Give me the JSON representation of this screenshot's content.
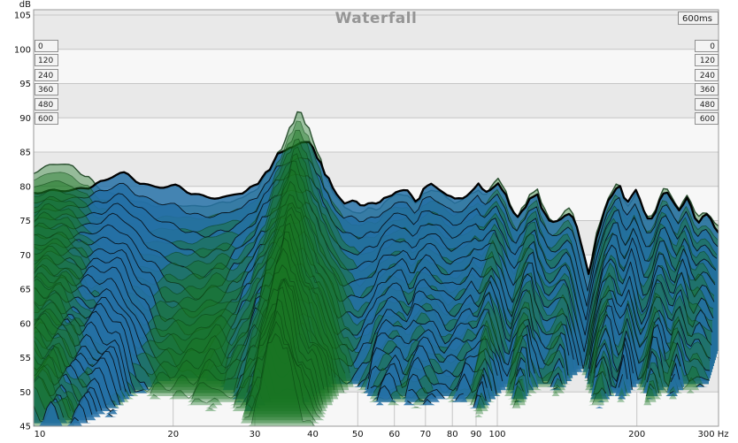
{
  "header": {
    "title": "Waterfall",
    "window_label": "600ms"
  },
  "axes": {
    "y_unit": "dB",
    "y_ticks": [
      105,
      100,
      95,
      90,
      85,
      80,
      75,
      70,
      65,
      60,
      55,
      50,
      45
    ],
    "x_ticks": [
      {
        "f": 10,
        "label": "10"
      },
      {
        "f": 20,
        "label": "20"
      },
      {
        "f": 30,
        "label": "30"
      },
      {
        "f": 40,
        "label": "40"
      },
      {
        "f": 50,
        "label": "50"
      },
      {
        "f": 60,
        "label": "60"
      },
      {
        "f": 70,
        "label": "70"
      },
      {
        "f": 80,
        "label": "80"
      },
      {
        "f": 90,
        "label": "90"
      },
      {
        "f": 100,
        "label": "100"
      },
      {
        "f": 200,
        "label": "200"
      },
      {
        "f": 300,
        "label": "300 Hz"
      }
    ],
    "time_labels_ms": [
      "0",
      "120",
      "240",
      "360",
      "480",
      "600"
    ]
  },
  "chart_data": {
    "type": "waterfall",
    "title": "Waterfall",
    "window_ms": 600,
    "x_unit": "Hz",
    "y_unit": "dB",
    "x_range": [
      10,
      300
    ],
    "y_range": [
      45,
      105
    ],
    "x_scale": "log",
    "grid": true,
    "slices": {
      "count": 26,
      "start_ms": 0,
      "end_ms": 600,
      "labeled_times_ms": [
        0,
        120,
        240,
        360,
        480,
        600
      ]
    },
    "colors": {
      "band_dark": "#e9e9e9",
      "band_light": "#f7f7f7",
      "grid": "#c6c6c6",
      "border": "#9a9a9a",
      "title_text": "#959595",
      "label_text": "#111111",
      "blue_fill": "#2470a6",
      "green_fill": "#197622"
    },
    "series": [
      {
        "name": "green",
        "fill_rgb": [
          25,
          118,
          34
        ],
        "fill_alpha": 0.4,
        "stroke": "rgba(8,58,14,0.55)",
        "stroke_first": "rgba(6,48,12,0.8)",
        "width": 0.8,
        "width_first": 1.4,
        "onset_db": [
          [
            10,
            82
          ],
          [
            11,
            83.3
          ],
          [
            12,
            83
          ],
          [
            13,
            81.5
          ],
          [
            14,
            79.6
          ],
          [
            15.5,
            78.4
          ],
          [
            17,
            77.6
          ],
          [
            18.5,
            77.2
          ],
          [
            20,
            77.4
          ],
          [
            22,
            77
          ],
          [
            24,
            77.2
          ],
          [
            26,
            77.8
          ],
          [
            28,
            78.2
          ],
          [
            30,
            79.4
          ],
          [
            32,
            81.8
          ],
          [
            34,
            85.4
          ],
          [
            36,
            88.8
          ],
          [
            37.4,
            91.2
          ],
          [
            39,
            88.8
          ],
          [
            41,
            84.8
          ],
          [
            43,
            80.8
          ],
          [
            45,
            78.4
          ],
          [
            47,
            76.8
          ],
          [
            49,
            76.4
          ],
          [
            51,
            76.2
          ],
          [
            53,
            76.8
          ],
          [
            55,
            76.6
          ],
          [
            58,
            78
          ],
          [
            61,
            78.8
          ],
          [
            64,
            78.8
          ],
          [
            67,
            77.4
          ],
          [
            70,
            79.2
          ],
          [
            72,
            79.6
          ],
          [
            75,
            79.2
          ],
          [
            78,
            78.2
          ],
          [
            81,
            77.6
          ],
          [
            84,
            78
          ],
          [
            88,
            78.8
          ],
          [
            91,
            79.6
          ],
          [
            94,
            78.8
          ],
          [
            97,
            79.8
          ],
          [
            100,
            81.2
          ],
          [
            103,
            80.2
          ],
          [
            107,
            77.4
          ],
          [
            110,
            75.2
          ],
          [
            114,
            77
          ],
          [
            118,
            79
          ],
          [
            122,
            79.6
          ],
          [
            126,
            76.6
          ],
          [
            131,
            75
          ],
          [
            135,
            75.2
          ],
          [
            140,
            76.4
          ],
          [
            144,
            76.8
          ],
          [
            148,
            74.2
          ],
          [
            152,
            71
          ],
          [
            157,
            66.5
          ],
          [
            161,
            70.2
          ],
          [
            165,
            74
          ],
          [
            170,
            76.8
          ],
          [
            175,
            78.8
          ],
          [
            180,
            80.3
          ],
          [
            184,
            80
          ],
          [
            188,
            78
          ],
          [
            192,
            77.2
          ],
          [
            196,
            78.2
          ],
          [
            200,
            79.2
          ],
          [
            204,
            77.6
          ],
          [
            208,
            76
          ],
          [
            213,
            75.2
          ],
          [
            218,
            76.4
          ],
          [
            224,
            78.4
          ],
          [
            229,
            79.7
          ],
          [
            234,
            79.4
          ],
          [
            240,
            77.8
          ],
          [
            246,
            76.8
          ],
          [
            251,
            78
          ],
          [
            257,
            78.8
          ],
          [
            262,
            77.6
          ],
          [
            267,
            76.2
          ],
          [
            272,
            75.6
          ],
          [
            278,
            76.2
          ],
          [
            283,
            76.2
          ],
          [
            288,
            75.6
          ],
          [
            293,
            74.6
          ],
          [
            300,
            74
          ]
        ],
        "decay_600ms_db": [
          [
            10,
            20
          ],
          [
            12,
            21
          ],
          [
            14,
            24
          ],
          [
            16,
            29
          ],
          [
            18,
            36
          ],
          [
            20,
            34
          ],
          [
            23,
            31
          ],
          [
            26,
            28
          ],
          [
            28,
            32
          ],
          [
            30,
            30
          ],
          [
            32,
            27
          ],
          [
            34,
            24
          ],
          [
            36,
            22
          ],
          [
            37.4,
            21
          ],
          [
            39,
            22
          ],
          [
            41,
            24
          ],
          [
            44,
            22
          ],
          [
            46,
            24
          ],
          [
            49,
            34
          ],
          [
            52,
            42
          ],
          [
            55,
            38
          ],
          [
            58,
            33
          ],
          [
            62,
            32
          ],
          [
            68,
            32
          ],
          [
            75,
            32
          ],
          [
            82,
            34
          ],
          [
            88,
            34
          ],
          [
            94,
            33
          ],
          [
            100,
            29
          ],
          [
            105,
            33
          ],
          [
            110,
            39
          ],
          [
            115,
            32
          ],
          [
            120,
            30
          ],
          [
            126,
            36
          ],
          [
            132,
            39
          ],
          [
            138,
            37
          ],
          [
            144,
            35
          ],
          [
            150,
            42
          ],
          [
            157,
            45
          ],
          [
            163,
            41
          ],
          [
            168,
            36
          ],
          [
            174,
            32
          ],
          [
            180,
            31
          ],
          [
            187,
            36
          ],
          [
            193,
            37
          ],
          [
            200,
            33
          ],
          [
            206,
            39
          ],
          [
            211,
            41
          ],
          [
            217,
            38
          ],
          [
            222,
            36
          ],
          [
            229,
            33
          ],
          [
            235,
            34
          ],
          [
            241,
            38
          ],
          [
            247,
            37
          ],
          [
            252,
            34
          ],
          [
            258,
            35
          ],
          [
            264,
            38
          ],
          [
            269,
            37
          ],
          [
            275,
            36
          ],
          [
            281,
            37
          ],
          [
            288,
            38
          ],
          [
            300,
            38
          ]
        ]
      },
      {
        "name": "blue",
        "fill_rgb": [
          36,
          112,
          166
        ],
        "fill_alpha": 0.85,
        "stroke": "#081520",
        "stroke_first": "#000000",
        "width": 0.9,
        "width_first": 2.3,
        "onset_db": [
          [
            10,
            79
          ],
          [
            11,
            79.3
          ],
          [
            12,
            79.5
          ],
          [
            13,
            79.8
          ],
          [
            14,
            80.6
          ],
          [
            15.5,
            82
          ],
          [
            17,
            80.6
          ],
          [
            18.5,
            79.8
          ],
          [
            20,
            80.1
          ],
          [
            22,
            79
          ],
          [
            24,
            78.4
          ],
          [
            26,
            78.4
          ],
          [
            28,
            79
          ],
          [
            30,
            80
          ],
          [
            32,
            82.4
          ],
          [
            34,
            84.9
          ],
          [
            36,
            85.8
          ],
          [
            38,
            86.2
          ],
          [
            39.5,
            86.4
          ],
          [
            41,
            84.2
          ],
          [
            43,
            81.2
          ],
          [
            45,
            79
          ],
          [
            47,
            77.6
          ],
          [
            49,
            77.8
          ],
          [
            51,
            77.2
          ],
          [
            53,
            77.6
          ],
          [
            55,
            77.3
          ],
          [
            58,
            78.6
          ],
          [
            61,
            79.3
          ],
          [
            64,
            79.4
          ],
          [
            67,
            77.9
          ],
          [
            70,
            79.8
          ],
          [
            72,
            80.2
          ],
          [
            75,
            79.6
          ],
          [
            78,
            78.7
          ],
          [
            81,
            78.1
          ],
          [
            84,
            78.4
          ],
          [
            88,
            79.3
          ],
          [
            91,
            80.3
          ],
          [
            94,
            79.2
          ],
          [
            97,
            79.6
          ],
          [
            100,
            80.4
          ],
          [
            103,
            79.2
          ],
          [
            107,
            77
          ],
          [
            110,
            75.6
          ],
          [
            114,
            76.6
          ],
          [
            118,
            78.2
          ],
          [
            122,
            79
          ],
          [
            126,
            76.2
          ],
          [
            131,
            74.6
          ],
          [
            135,
            74.8
          ],
          [
            140,
            75.8
          ],
          [
            144,
            76.1
          ],
          [
            148,
            74
          ],
          [
            152,
            71.5
          ],
          [
            157,
            67.3
          ],
          [
            161,
            70
          ],
          [
            165,
            73.4
          ],
          [
            170,
            76.3
          ],
          [
            175,
            78.3
          ],
          [
            180,
            79.8
          ],
          [
            184,
            80.1
          ],
          [
            188,
            78.2
          ],
          [
            192,
            77.5
          ],
          [
            196,
            78.6
          ],
          [
            200,
            79.6
          ],
          [
            204,
            78
          ],
          [
            208,
            76.3
          ],
          [
            213,
            74.8
          ],
          [
            218,
            75.8
          ],
          [
            224,
            78
          ],
          [
            229,
            79.2
          ],
          [
            234,
            79.3
          ],
          [
            240,
            77.5
          ],
          [
            246,
            76.3
          ],
          [
            251,
            77.2
          ],
          [
            257,
            78.4
          ],
          [
            262,
            77.2
          ],
          [
            267,
            75.4
          ],
          [
            272,
            74.6
          ],
          [
            278,
            75.4
          ],
          [
            283,
            75.8
          ],
          [
            288,
            75.3
          ],
          [
            293,
            74.2
          ],
          [
            300,
            73.4
          ]
        ],
        "decay_600ms_db": [
          [
            10,
            22
          ],
          [
            12,
            22
          ],
          [
            14,
            25
          ],
          [
            16,
            30
          ],
          [
            18,
            42
          ],
          [
            20,
            58
          ],
          [
            23,
            62
          ],
          [
            26,
            52
          ],
          [
            28,
            42
          ],
          [
            30,
            36
          ],
          [
            32,
            33
          ],
          [
            34,
            38
          ],
          [
            36,
            44
          ],
          [
            38,
            46
          ],
          [
            40,
            44
          ],
          [
            42,
            41
          ],
          [
            44,
            44
          ],
          [
            46,
            48
          ],
          [
            49,
            48
          ],
          [
            52,
            46
          ],
          [
            55,
            40
          ],
          [
            58,
            34
          ],
          [
            61,
            33
          ],
          [
            64,
            33
          ],
          [
            67,
            34
          ],
          [
            70,
            33
          ],
          [
            76,
            33
          ],
          [
            82,
            35
          ],
          [
            88,
            35
          ],
          [
            94,
            34
          ],
          [
            100,
            31
          ],
          [
            105,
            34
          ],
          [
            110,
            40
          ],
          [
            115,
            35
          ],
          [
            120,
            32
          ],
          [
            126,
            38
          ],
          [
            132,
            41
          ],
          [
            138,
            40
          ],
          [
            144,
            38
          ],
          [
            150,
            44
          ],
          [
            157,
            48
          ],
          [
            163,
            43
          ],
          [
            168,
            38
          ],
          [
            174,
            34
          ],
          [
            180,
            33
          ],
          [
            187,
            37
          ],
          [
            193,
            38
          ],
          [
            200,
            34
          ],
          [
            206,
            40
          ],
          [
            211,
            43
          ],
          [
            217,
            40
          ],
          [
            222,
            38
          ],
          [
            229,
            35
          ],
          [
            235,
            36
          ],
          [
            241,
            41
          ],
          [
            247,
            40
          ],
          [
            252,
            37
          ],
          [
            258,
            37
          ],
          [
            264,
            40
          ],
          [
            269,
            42
          ],
          [
            275,
            41
          ],
          [
            281,
            40
          ],
          [
            288,
            40
          ],
          [
            300,
            40
          ]
        ]
      }
    ]
  }
}
